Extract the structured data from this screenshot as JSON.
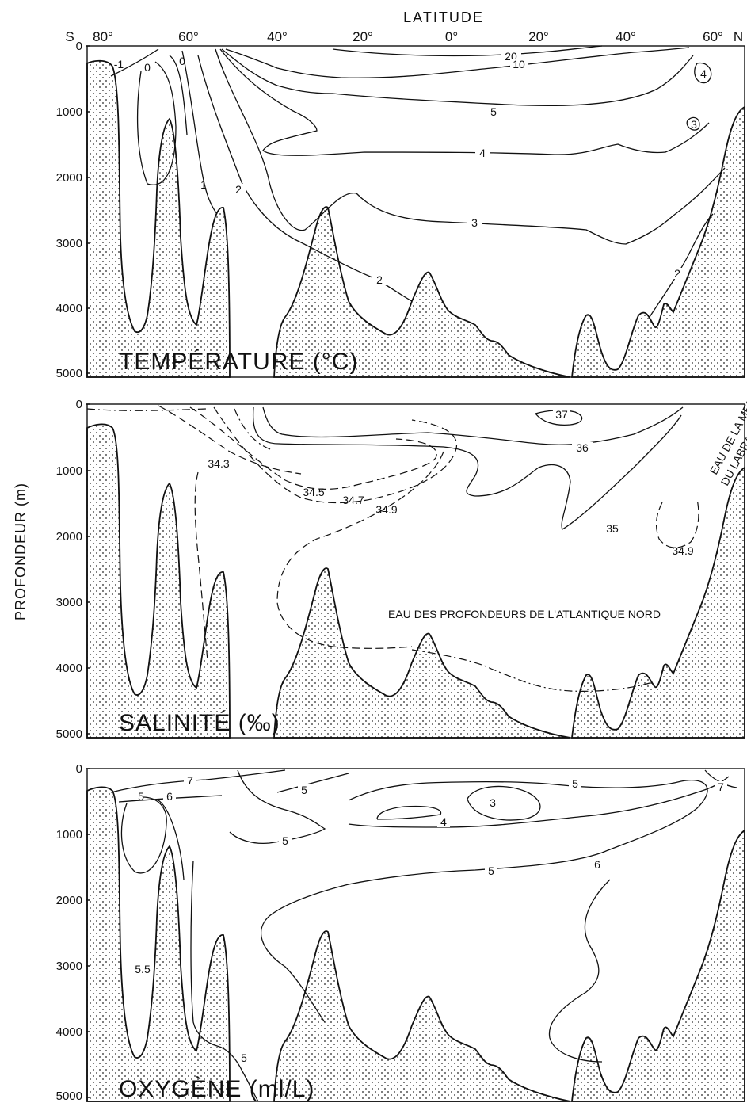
{
  "figure": {
    "top_axis": {
      "title": "LATITUDE",
      "south": "S",
      "north": "N",
      "ticks": [
        "80°",
        "60°",
        "40°",
        "20°",
        "0°",
        "20°",
        "40°",
        "60°"
      ]
    },
    "y_axis": {
      "title": "PROFONDEUR (m)",
      "ticks": [
        "0",
        "1000",
        "2000",
        "3000",
        "4000",
        "5000"
      ]
    },
    "panels": [
      {
        "title": "TEMPÉRATURE (°C)",
        "contour_labels": [
          "20",
          "10",
          "5",
          "4",
          "3",
          "2",
          "2",
          "2",
          "1",
          "0",
          "0",
          "-1",
          "4",
          "3"
        ]
      },
      {
        "title": "SALINITÉ (‰)",
        "contour_labels": [
          "37",
          "36",
          "35",
          "34.3",
          "34.5",
          "34.7",
          "34.9",
          "34.9"
        ],
        "annotations": [
          "EAU DES PROFONDEURS DE L'ATLANTIQUE NORD",
          "EAU DE LA MER",
          "DU LABRADOR"
        ]
      },
      {
        "title": "OXYGÈNE (ml/L)",
        "contour_labels": [
          "7",
          "7",
          "5",
          "5",
          "6",
          "5",
          "5",
          "3",
          "4",
          "5",
          "6",
          "5.5",
          "5"
        ]
      }
    ]
  }
}
